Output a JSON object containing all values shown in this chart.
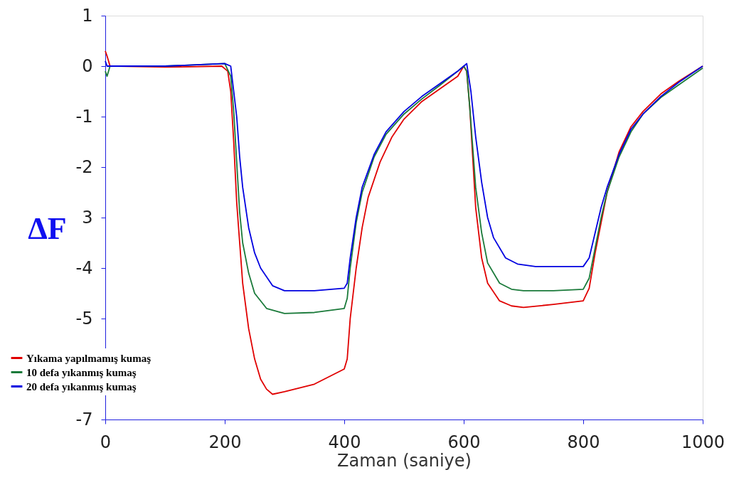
{
  "chart_data": {
    "type": "line",
    "xlabel": "Zaman (saniye)",
    "ylabel": "ΔF",
    "xlim": [
      0,
      1000
    ],
    "xticks": [
      0,
      200,
      400,
      600,
      800,
      1000
    ],
    "ylim": [
      -7,
      1
    ],
    "yticks": [
      1,
      0,
      -1,
      -2,
      {
        "value": -3,
        "label": "3"
      },
      -4,
      -5,
      {
        "value": -6,
        "label": null
      },
      -7
    ],
    "grid": false,
    "legend": "bottom left",
    "marker": "none",
    "line_style": "solid",
    "series": [
      {
        "name": "Yıkama yapılmamış kumaş",
        "color": "#e00000",
        "x": [
          0,
          3,
          8,
          20,
          100,
          195,
          205,
          210,
          215,
          220,
          225,
          230,
          240,
          250,
          260,
          270,
          280,
          300,
          350,
          400,
          405,
          410,
          420,
          430,
          440,
          460,
          480,
          500,
          530,
          560,
          590,
          600,
          605,
          610,
          615,
          620,
          630,
          640,
          660,
          680,
          700,
          750,
          800,
          810,
          820,
          830,
          840,
          860,
          880,
          900,
          930,
          960,
          1000
        ],
        "values": [
          0.3,
          0.2,
          0.0,
          0.0,
          -0.02,
          0.0,
          -0.1,
          -0.5,
          -1.5,
          -2.7,
          -3.5,
          -4.3,
          -5.2,
          -5.8,
          -6.2,
          -6.4,
          -6.5,
          -6.45,
          -6.3,
          -6.0,
          -5.8,
          -5.0,
          -4.0,
          -3.2,
          -2.6,
          -1.9,
          -1.4,
          -1.05,
          -0.7,
          -0.45,
          -0.2,
          0.0,
          -0.1,
          -0.8,
          -1.8,
          -2.8,
          -3.8,
          -4.3,
          -4.65,
          -4.75,
          -4.78,
          -4.72,
          -4.65,
          -4.4,
          -3.7,
          -3.1,
          -2.5,
          -1.7,
          -1.2,
          -0.9,
          -0.55,
          -0.3,
          0.0
        ]
      },
      {
        "name": "10 defa yıkanmış kumaş",
        "color": "#1a7a3a",
        "x": [
          0,
          3,
          8,
          100,
          200,
          210,
          215,
          220,
          225,
          230,
          240,
          250,
          270,
          300,
          350,
          400,
          405,
          410,
          420,
          430,
          450,
          470,
          500,
          530,
          560,
          590,
          600,
          605,
          610,
          615,
          620,
          630,
          640,
          660,
          680,
          700,
          750,
          800,
          810,
          820,
          830,
          840,
          860,
          880,
          900,
          930,
          960,
          1000
        ],
        "values": [
          -0.1,
          -0.2,
          0.0,
          0.0,
          0.05,
          -0.2,
          -0.9,
          -1.9,
          -2.9,
          -3.5,
          -4.1,
          -4.5,
          -4.8,
          -4.9,
          -4.88,
          -4.8,
          -4.6,
          -4.0,
          -3.1,
          -2.5,
          -1.8,
          -1.35,
          -0.95,
          -0.65,
          -0.38,
          -0.1,
          0.0,
          -0.1,
          -0.8,
          -1.6,
          -2.4,
          -3.3,
          -3.9,
          -4.3,
          -4.42,
          -4.45,
          -4.45,
          -4.42,
          -4.2,
          -3.6,
          -3.0,
          -2.5,
          -1.8,
          -1.3,
          -0.95,
          -0.62,
          -0.37,
          -0.04
        ]
      },
      {
        "name": "20 defa yıkanmış kumaş",
        "color": "#0000e0",
        "x": [
          0,
          3,
          100,
          200,
          210,
          215,
          220,
          225,
          230,
          240,
          250,
          260,
          280,
          300,
          350,
          400,
          405,
          410,
          420,
          430,
          450,
          470,
          500,
          530,
          560,
          590,
          605,
          612,
          620,
          630,
          640,
          650,
          670,
          690,
          720,
          800,
          810,
          820,
          830,
          840,
          860,
          880,
          900,
          930,
          960,
          1000
        ],
        "values": [
          0.1,
          0.0,
          0.0,
          0.05,
          0.0,
          -0.5,
          -1.0,
          -1.8,
          -2.4,
          -3.2,
          -3.7,
          -4.0,
          -4.35,
          -4.45,
          -4.45,
          -4.4,
          -4.3,
          -3.8,
          -3.0,
          -2.4,
          -1.75,
          -1.3,
          -0.9,
          -0.6,
          -0.35,
          -0.1,
          0.05,
          -0.5,
          -1.4,
          -2.3,
          -3.0,
          -3.4,
          -3.8,
          -3.92,
          -3.97,
          -3.97,
          -3.8,
          -3.3,
          -2.8,
          -2.4,
          -1.75,
          -1.25,
          -0.95,
          -0.6,
          -0.32,
          0.0
        ]
      }
    ]
  }
}
